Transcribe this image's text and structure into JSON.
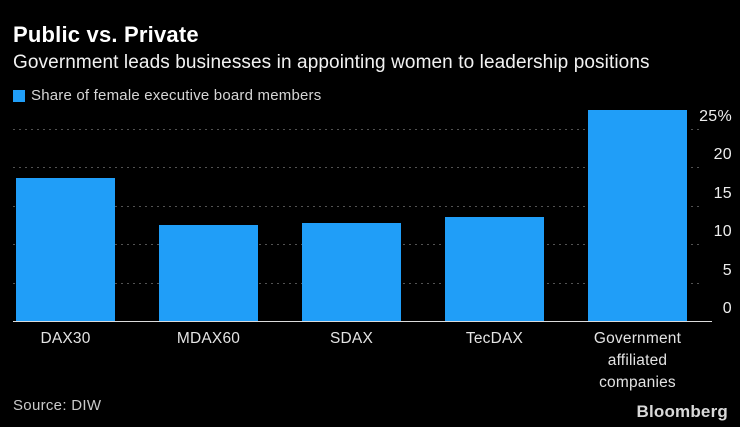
{
  "chart_data": {
    "type": "bar",
    "title": "Public vs. Private",
    "subtitle": "Government leads businesses in appointing women to leadership positions",
    "legend_label": "Share of female executive board members",
    "categories": [
      "DAX30",
      "MDAX60",
      "SDAX",
      "TecDAX",
      "Government affiliated companies"
    ],
    "values": [
      18.6,
      12.5,
      12.8,
      13.6,
      27.5
    ],
    "ylabel": "",
    "xlabel": "",
    "ylim": [
      0,
      27.6
    ],
    "yticks": [
      {
        "value": 0,
        "label": "0"
      },
      {
        "value": 5,
        "label": "5"
      },
      {
        "value": 10,
        "label": "10"
      },
      {
        "value": 15,
        "label": "15"
      },
      {
        "value": 20,
        "label": "20"
      },
      {
        "value": 25,
        "label": "25%"
      }
    ],
    "axis_side": "right",
    "grid": "horizontal-dotted",
    "legend_position": "top-left",
    "bar_color": "#209ef8",
    "background_color": "#000000",
    "grid_color": "#525252",
    "baseline_color": "#dcdcdc"
  },
  "footer": {
    "source": "Source: DIW",
    "brand": "Bloomberg"
  }
}
